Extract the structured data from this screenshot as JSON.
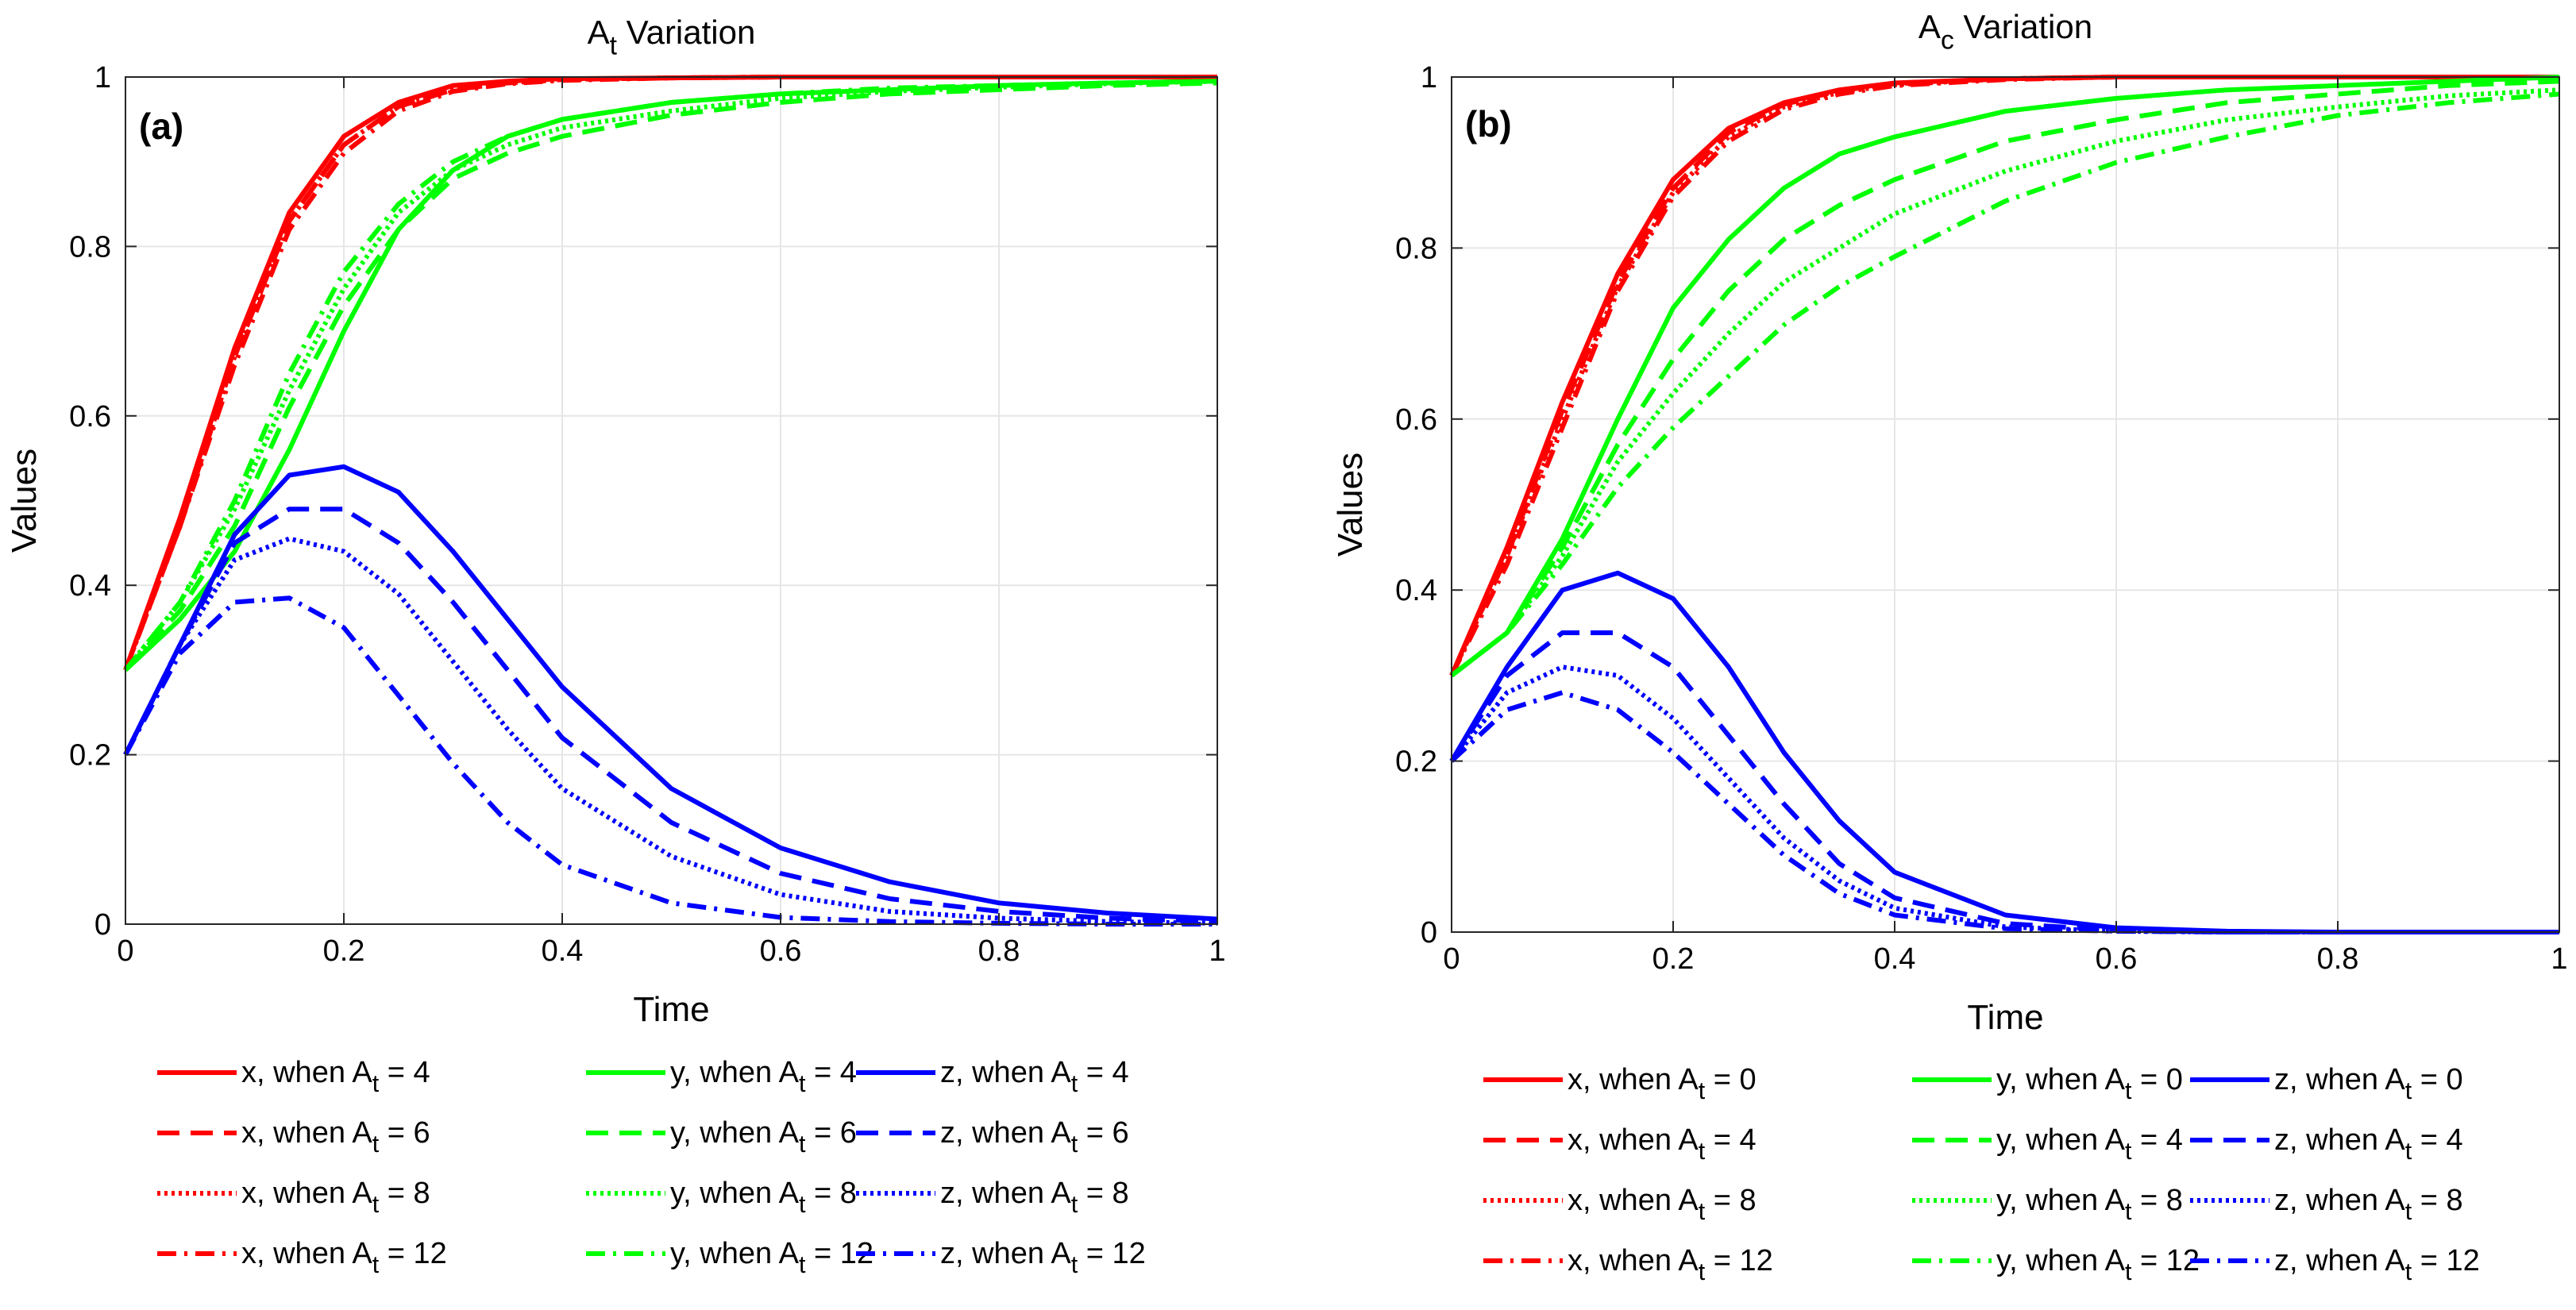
{
  "colors": {
    "x": "#ff0000",
    "y": "#00ff00",
    "z": "#0000ff",
    "grid": "#e6e6e6",
    "axis": "#262626"
  },
  "line_styles": {
    "solid": "",
    "dashed": "28 14",
    "dotted": "4 5",
    "dashdot": "24 10 4 10"
  },
  "chart_data": [
    {
      "type": "line",
      "title": {
        "main": "A",
        "sub": "t",
        "rest": " Variation"
      },
      "panel_label": "(a)",
      "xlabel": "Time",
      "ylabel": "Values",
      "xlim": [
        0,
        1
      ],
      "ylim": [
        0,
        1
      ],
      "xticks": [
        "0",
        "0.2",
        "0.4",
        "0.6",
        "0.8",
        "1"
      ],
      "yticks": [
        "0",
        "0.2",
        "0.4",
        "0.6",
        "0.8",
        "1"
      ],
      "grid": true,
      "legend_position": "below",
      "x": [
        0,
        0.05,
        0.1,
        0.15,
        0.2,
        0.25,
        0.3,
        0.35,
        0.4,
        0.5,
        0.6,
        0.7,
        0.8,
        0.9,
        1.0
      ],
      "series": [
        {
          "var": "x",
          "style": "solid",
          "label": {
            "pre": "x, when A",
            "sub": "t",
            "post": " = 4"
          },
          "values": [
            0.3,
            0.48,
            0.68,
            0.84,
            0.93,
            0.97,
            0.99,
            0.995,
            0.998,
            0.999,
            1,
            1,
            1,
            1,
            1
          ]
        },
        {
          "var": "x",
          "style": "dashed",
          "label": {
            "pre": "x, when A",
            "sub": "t",
            "post": " = 6"
          },
          "values": [
            0.3,
            0.47,
            0.67,
            0.83,
            0.92,
            0.965,
            0.985,
            0.993,
            0.997,
            0.999,
            1,
            1,
            1,
            1,
            1
          ]
        },
        {
          "var": "x",
          "style": "dotted",
          "label": {
            "pre": "x, when A",
            "sub": "t",
            "post": " = 8"
          },
          "values": [
            0.3,
            0.47,
            0.67,
            0.83,
            0.92,
            0.965,
            0.985,
            0.993,
            0.997,
            0.999,
            1,
            1,
            1,
            1,
            1
          ]
        },
        {
          "var": "x",
          "style": "dashdot",
          "label": {
            "pre": "x, when A",
            "sub": "t",
            "post": " = 12"
          },
          "values": [
            0.3,
            0.47,
            0.66,
            0.82,
            0.91,
            0.96,
            0.983,
            0.992,
            0.996,
            0.999,
            1,
            1,
            1,
            1,
            1
          ]
        },
        {
          "var": "y",
          "style": "solid",
          "label": {
            "pre": "y, when A",
            "sub": "t",
            "post": " = 4"
          },
          "values": [
            0.3,
            0.36,
            0.44,
            0.56,
            0.7,
            0.82,
            0.89,
            0.93,
            0.95,
            0.97,
            0.98,
            0.985,
            0.99,
            0.993,
            0.995
          ]
        },
        {
          "var": "y",
          "style": "dashed",
          "label": {
            "pre": "y, when A",
            "sub": "t",
            "post": " = 6"
          },
          "values": [
            0.3,
            0.37,
            0.47,
            0.61,
            0.73,
            0.82,
            0.88,
            0.91,
            0.93,
            0.955,
            0.97,
            0.98,
            0.985,
            0.99,
            0.993
          ]
        },
        {
          "var": "y",
          "style": "dotted",
          "label": {
            "pre": "y, when A",
            "sub": "t",
            "post": " = 8"
          },
          "values": [
            0.3,
            0.38,
            0.49,
            0.63,
            0.75,
            0.84,
            0.89,
            0.92,
            0.94,
            0.96,
            0.975,
            0.983,
            0.988,
            0.992,
            0.995
          ]
        },
        {
          "var": "y",
          "style": "dashdot",
          "label": {
            "pre": "y, when A",
            "sub": "t",
            "post": " = 12"
          },
          "values": [
            0.3,
            0.38,
            0.5,
            0.65,
            0.77,
            0.85,
            0.9,
            0.93,
            0.95,
            0.97,
            0.98,
            0.987,
            0.99,
            0.993,
            0.995
          ]
        },
        {
          "var": "z",
          "style": "solid",
          "label": {
            "pre": "z, when A",
            "sub": "t",
            "post": " = 4"
          },
          "values": [
            0.2,
            0.33,
            0.46,
            0.53,
            0.54,
            0.51,
            0.44,
            0.36,
            0.28,
            0.16,
            0.09,
            0.05,
            0.025,
            0.013,
            0.006
          ]
        },
        {
          "var": "z",
          "style": "dashed",
          "label": {
            "pre": "z, when A",
            "sub": "t",
            "post": " = 6"
          },
          "values": [
            0.2,
            0.33,
            0.45,
            0.49,
            0.49,
            0.45,
            0.38,
            0.3,
            0.22,
            0.12,
            0.06,
            0.03,
            0.015,
            0.007,
            0.003
          ]
        },
        {
          "var": "z",
          "style": "dotted",
          "label": {
            "pre": "z, when A",
            "sub": "t",
            "post": " = 8"
          },
          "values": [
            0.2,
            0.33,
            0.43,
            0.455,
            0.44,
            0.39,
            0.31,
            0.23,
            0.16,
            0.08,
            0.035,
            0.015,
            0.007,
            0.003,
            0.001
          ]
        },
        {
          "var": "z",
          "style": "dashdot",
          "label": {
            "pre": "z, when A",
            "sub": "t",
            "post": " = 12"
          },
          "values": [
            0.2,
            0.32,
            0.38,
            0.385,
            0.35,
            0.27,
            0.19,
            0.12,
            0.07,
            0.025,
            0.008,
            0.003,
            0.001,
            0,
            0
          ]
        }
      ]
    },
    {
      "type": "line",
      "title": {
        "main": "A",
        "sub": "c",
        "rest": " Variation"
      },
      "panel_label": "(b)",
      "xlabel": "Time",
      "ylabel": "Values",
      "xlim": [
        0,
        1
      ],
      "ylim": [
        0,
        1
      ],
      "xticks": [
        "0",
        "0.2",
        "0.4",
        "0.6",
        "0.8",
        "1"
      ],
      "yticks": [
        "0",
        "0.2",
        "0.4",
        "0.6",
        "0.8",
        "1"
      ],
      "grid": true,
      "legend_position": "below",
      "x": [
        0,
        0.05,
        0.1,
        0.15,
        0.2,
        0.25,
        0.3,
        0.35,
        0.4,
        0.5,
        0.6,
        0.7,
        0.8,
        0.9,
        1.0
      ],
      "series": [
        {
          "var": "x",
          "style": "solid",
          "label": {
            "pre": "x, when A",
            "sub": "t",
            "post": " = 0"
          },
          "values": [
            0.3,
            0.45,
            0.62,
            0.77,
            0.88,
            0.94,
            0.97,
            0.985,
            0.993,
            0.998,
            1,
            1,
            1,
            1,
            1
          ]
        },
        {
          "var": "x",
          "style": "dashed",
          "label": {
            "pre": "x, when A",
            "sub": "t",
            "post": " = 4"
          },
          "values": [
            0.3,
            0.44,
            0.61,
            0.76,
            0.87,
            0.935,
            0.968,
            0.984,
            0.992,
            0.998,
            1,
            1,
            1,
            1,
            1
          ]
        },
        {
          "var": "x",
          "style": "dotted",
          "label": {
            "pre": "x, when A",
            "sub": "t",
            "post": " = 8"
          },
          "values": [
            0.3,
            0.44,
            0.6,
            0.755,
            0.865,
            0.93,
            0.965,
            0.982,
            0.991,
            0.998,
            1,
            1,
            1,
            1,
            1
          ]
        },
        {
          "var": "x",
          "style": "dashdot",
          "label": {
            "pre": "x, when A",
            "sub": "t",
            "post": " = 12"
          },
          "values": [
            0.3,
            0.43,
            0.59,
            0.75,
            0.86,
            0.925,
            0.962,
            0.98,
            0.99,
            0.997,
            1,
            1,
            1,
            1,
            1
          ]
        },
        {
          "var": "y",
          "style": "solid",
          "label": {
            "pre": "y, when A",
            "sub": "t",
            "post": " = 0"
          },
          "values": [
            0.3,
            0.35,
            0.46,
            0.6,
            0.73,
            0.81,
            0.87,
            0.91,
            0.93,
            0.96,
            0.975,
            0.985,
            0.99,
            0.995,
            1.0
          ]
        },
        {
          "var": "y",
          "style": "dashed",
          "label": {
            "pre": "y, when A",
            "sub": "t",
            "post": " = 4"
          },
          "values": [
            0.3,
            0.35,
            0.45,
            0.57,
            0.67,
            0.75,
            0.81,
            0.85,
            0.88,
            0.925,
            0.95,
            0.97,
            0.98,
            0.99,
            0.995
          ]
        },
        {
          "var": "y",
          "style": "dotted",
          "label": {
            "pre": "y, when A",
            "sub": "t",
            "post": " = 8"
          },
          "values": [
            0.3,
            0.35,
            0.44,
            0.55,
            0.63,
            0.7,
            0.76,
            0.8,
            0.84,
            0.89,
            0.925,
            0.95,
            0.965,
            0.978,
            0.985
          ]
        },
        {
          "var": "y",
          "style": "dashdot",
          "label": {
            "pre": "y, when A",
            "sub": "t",
            "post": " = 12"
          },
          "values": [
            0.3,
            0.35,
            0.43,
            0.52,
            0.59,
            0.65,
            0.71,
            0.755,
            0.79,
            0.855,
            0.9,
            0.93,
            0.955,
            0.97,
            0.98
          ]
        },
        {
          "var": "z",
          "style": "solid",
          "label": {
            "pre": "z, when A",
            "sub": "t",
            "post": " = 0"
          },
          "values": [
            0.2,
            0.31,
            0.4,
            0.42,
            0.39,
            0.31,
            0.21,
            0.13,
            0.07,
            0.02,
            0.005,
            0.001,
            0,
            0,
            0
          ]
        },
        {
          "var": "z",
          "style": "dashed",
          "label": {
            "pre": "z, when A",
            "sub": "t",
            "post": " = 4"
          },
          "values": [
            0.2,
            0.3,
            0.35,
            0.35,
            0.31,
            0.23,
            0.15,
            0.08,
            0.04,
            0.01,
            0.002,
            0,
            0,
            0,
            0
          ]
        },
        {
          "var": "z",
          "style": "dotted",
          "label": {
            "pre": "z, when A",
            "sub": "t",
            "post": " = 8"
          },
          "values": [
            0.2,
            0.28,
            0.31,
            0.3,
            0.25,
            0.18,
            0.11,
            0.06,
            0.028,
            0.006,
            0.001,
            0,
            0,
            0,
            0
          ]
        },
        {
          "var": "z",
          "style": "dashdot",
          "label": {
            "pre": "z, when A",
            "sub": "t",
            "post": " = 12"
          },
          "values": [
            0.2,
            0.26,
            0.28,
            0.26,
            0.21,
            0.15,
            0.09,
            0.045,
            0.02,
            0.004,
            0.001,
            0,
            0,
            0,
            0
          ]
        }
      ]
    }
  ]
}
